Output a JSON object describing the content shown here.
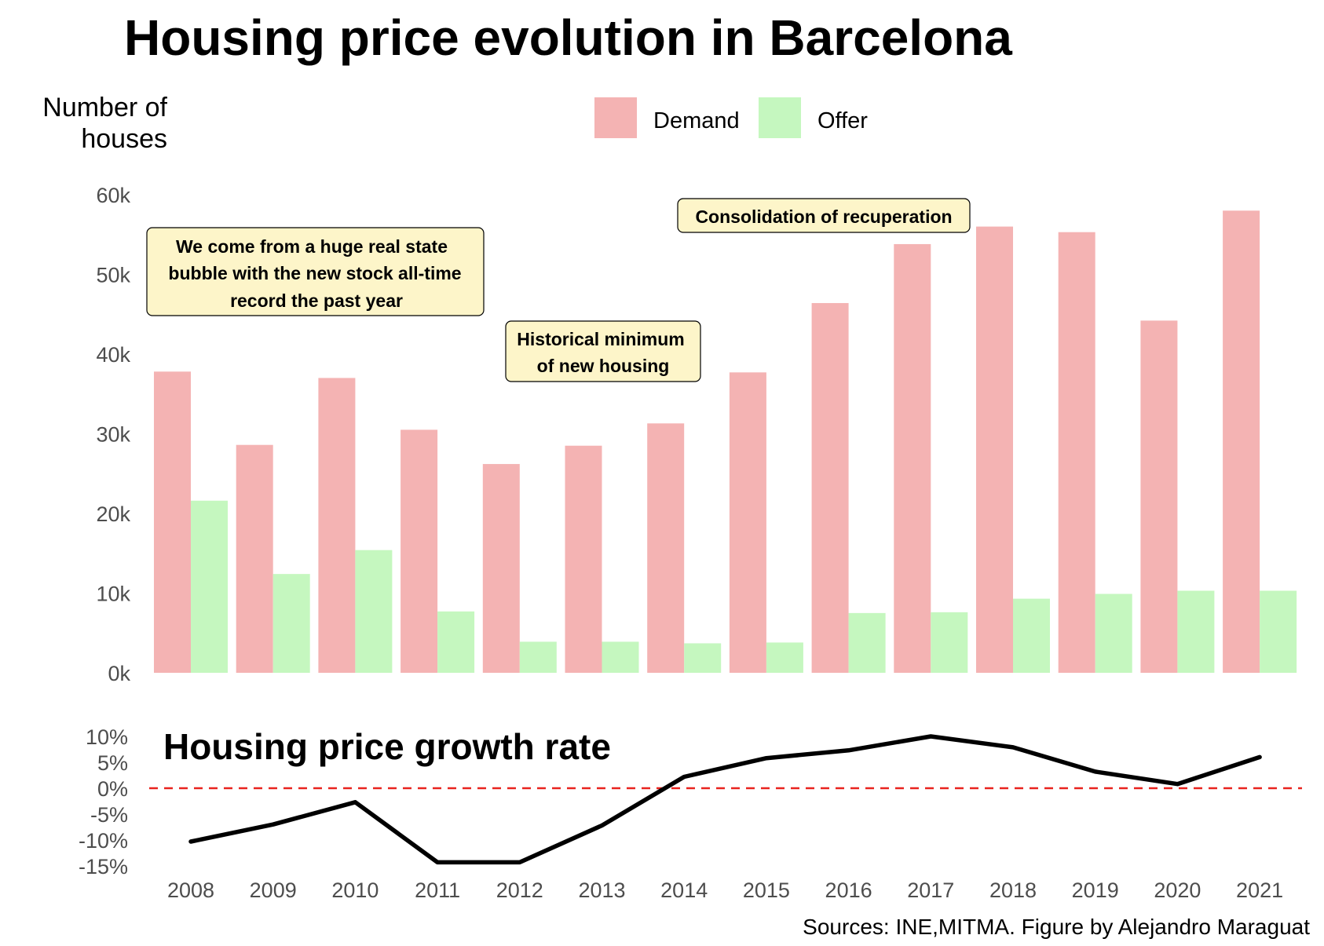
{
  "title": "Housing price evolution in Barcelona",
  "source": "Sources: INE,MITMA. Figure by Alejandro Maraguat",
  "colors": {
    "demand": "#f4b3b3",
    "offer": "#c5f7bf",
    "annotation_fill": "#fdf5c9",
    "zero_line": "#e8231f",
    "growth_line": "#000000"
  },
  "chart_data": [
    {
      "type": "bar",
      "ylabel_lines": [
        "Number of",
        "houses"
      ],
      "categories": [
        "2008",
        "2009",
        "2010",
        "2011",
        "2012",
        "2013",
        "2014",
        "2015",
        "2016",
        "2017",
        "2018",
        "2019",
        "2020",
        "2021"
      ],
      "series": [
        {
          "name": "Demand",
          "values": [
            37800,
            28600,
            37000,
            30500,
            26200,
            28500,
            31300,
            37700,
            46400,
            53800,
            56000,
            55300,
            44200,
            58000
          ]
        },
        {
          "name": "Offer",
          "values": [
            21600,
            12400,
            15400,
            7700,
            3900,
            3900,
            3700,
            3800,
            7500,
            7600,
            9300,
            9900,
            10300,
            10300
          ]
        }
      ],
      "ylim": [
        0,
        60000
      ],
      "yticks": [
        0,
        10000,
        20000,
        30000,
        40000,
        50000,
        60000
      ],
      "ytick_labels": [
        "0k",
        "10k",
        "20k",
        "30k",
        "40k",
        "50k",
        "60k"
      ],
      "legend_position": "top",
      "grid": false,
      "annotations": [
        {
          "lines": [
            "We come from a huge real state",
            "bubble with the new stock all-time",
            "record the past year"
          ]
        },
        {
          "lines": [
            "Historical minimum",
            "of new housing"
          ]
        },
        {
          "lines": [
            "Consolidation of recuperation"
          ]
        }
      ]
    },
    {
      "type": "line",
      "title": "Housing price growth rate",
      "x": [
        "2008",
        "2009",
        "2010",
        "2011",
        "2012",
        "2013",
        "2014",
        "2015",
        "2016",
        "2017",
        "2018",
        "2019",
        "2020",
        "2021"
      ],
      "series": [
        {
          "values": [
            -10.3,
            -7.0,
            -2.7,
            -14.3,
            -14.3,
            -7.2,
            2.2,
            5.8,
            7.3,
            10.0,
            7.9,
            3.2,
            0.8,
            6.0
          ]
        }
      ],
      "ylim": [
        -15,
        10
      ],
      "yticks": [
        -15,
        -10,
        -5,
        0,
        5,
        10
      ],
      "ytick_labels": [
        "-15%",
        "-10%",
        "-5%",
        "0%",
        "5%",
        "10%"
      ],
      "reference_line": 0,
      "grid": false
    }
  ]
}
